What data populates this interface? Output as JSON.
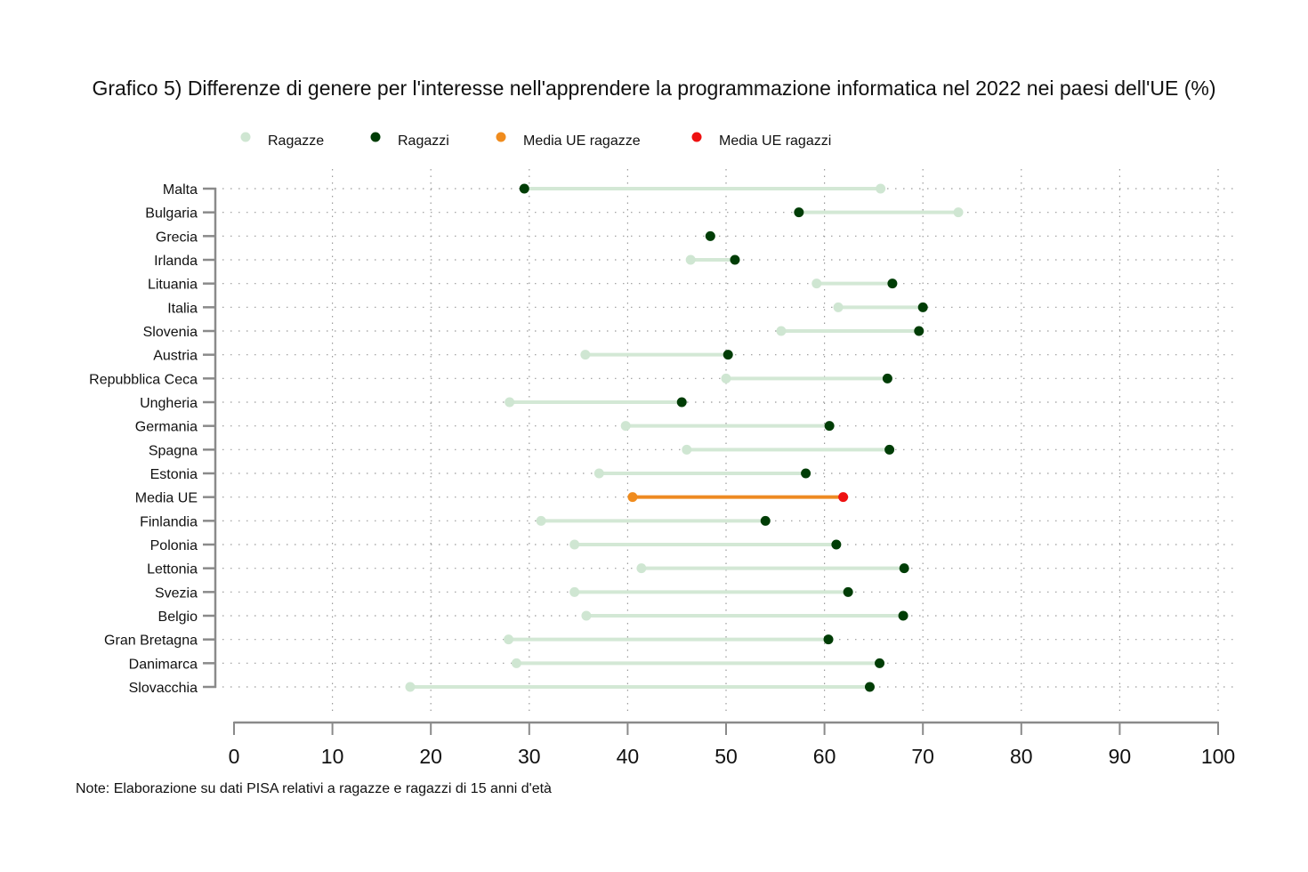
{
  "chart_data": {
    "type": "dumbbell",
    "title": "Grafico 5) Differenze di genere per l'interesse nell'apprendere la programmazione informatica nel 2022 nei paesi dell'UE (%)",
    "note": "Note: Elaborazione su dati PISA relativi a ragazze e ragazzi di 15 anni d'età",
    "xlabel": "",
    "ylabel": "",
    "xlim": [
      0,
      100
    ],
    "xticks": [
      "0",
      "10",
      "20",
      "30",
      "40",
      "50",
      "60",
      "70",
      "80",
      "90",
      "100"
    ],
    "grid": true,
    "legend_position": "top",
    "legend": [
      {
        "label": "Ragazze",
        "color": "#cfe6d2"
      },
      {
        "label": "Ragazzi",
        "color": "#003d06"
      },
      {
        "label": "Media UE ragazze",
        "color": "#f08c1e"
      },
      {
        "label": "Media UE ragazzi",
        "color": "#ee1111"
      }
    ],
    "colors": {
      "ragazze": "#cfe6d2",
      "ragazzi": "#003d06",
      "media_ragazze": "#f08c1e",
      "media_ragazzi": "#ee1111",
      "connector": "#d3e8d5",
      "media_connector": "#ee8a22",
      "axis": "#8a8a8a",
      "grid": "#9a9a9a"
    },
    "categories": [
      "Malta",
      "Bulgaria",
      "Grecia",
      "Irlanda",
      "Lituania",
      "Italia",
      "Slovenia",
      "Austria",
      "Repubblica Ceca",
      "Ungheria",
      "Germania",
      "Spagna",
      "Estonia",
      "Media UE",
      "Finlandia",
      "Polonia",
      "Lettonia",
      "Svezia",
      "Belgio",
      "Gran Bretagna",
      "Danimarca",
      "Slovacchia"
    ],
    "series": [
      {
        "name": "Ragazze",
        "values": [
          65.7,
          73.6,
          48.4,
          46.4,
          59.2,
          61.4,
          55.6,
          35.7,
          50.0,
          28.0,
          39.8,
          46.0,
          37.1,
          40.5,
          31.2,
          34.6,
          41.4,
          34.6,
          35.8,
          27.9,
          28.7,
          17.9
        ]
      },
      {
        "name": "Ragazzi",
        "values": [
          29.5,
          57.4,
          48.4,
          50.9,
          66.9,
          70.0,
          69.6,
          50.2,
          66.4,
          45.5,
          60.5,
          66.6,
          58.1,
          61.9,
          54.0,
          61.2,
          68.1,
          62.4,
          68.0,
          60.4,
          65.6,
          64.6
        ]
      }
    ],
    "highlight_category": "Media UE"
  }
}
